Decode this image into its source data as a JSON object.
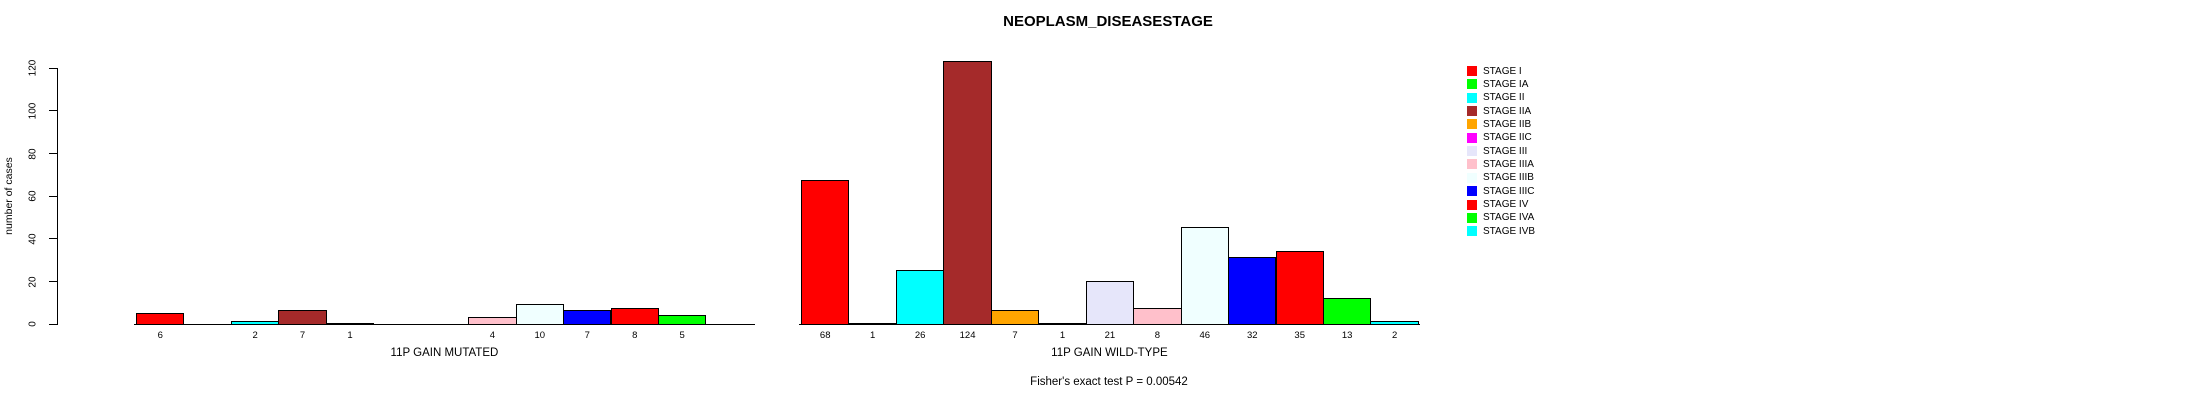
{
  "figure": {
    "title": "NEOPLASM_DISEASESTAGE",
    "footer": "Fisher's exact test P = 0.00542"
  },
  "chart_data": {
    "type": "bar",
    "title": "NEOPLASM_DISEASESTAGE",
    "xlabel": "",
    "ylabel": "number of cases",
    "ylim": [
      0,
      124
    ],
    "yticks": [
      0,
      20,
      40,
      60,
      80,
      100,
      120
    ],
    "grid": false,
    "legend_position": "right",
    "categories": [
      "STAGE I",
      "STAGE IA",
      "STAGE II",
      "STAGE IIA",
      "STAGE IIB",
      "STAGE IIC",
      "STAGE III",
      "STAGE IIIA",
      "STAGE IIIB",
      "STAGE IIIC",
      "STAGE IV",
      "STAGE IVA",
      "STAGE IVB"
    ],
    "category_colors": [
      "#FF0000",
      "#00FF00",
      "#00FFFF",
      "#A52A2A",
      "#FFA500",
      "#FF00FF",
      "#E6E6FA",
      "#FFC0CB",
      "#F0FFFF",
      "#0000FF",
      "#FF0000",
      "#00FF00",
      "#00FFFF"
    ],
    "bar_border_color": "#000000",
    "series": [
      {
        "name": "11P GAIN MUTATED",
        "values": [
          6,
          0,
          2,
          7,
          1,
          0,
          0,
          4,
          10,
          7,
          8,
          5,
          0
        ]
      },
      {
        "name": "11P GAIN WILD-TYPE",
        "values": [
          68,
          1,
          26,
          124,
          7,
          1,
          21,
          8,
          46,
          32,
          35,
          13,
          2
        ]
      }
    ],
    "legend": [
      {
        "label": "STAGE I",
        "color": "#FF0000"
      },
      {
        "label": "STAGE IA",
        "color": "#00FF00"
      },
      {
        "label": "STAGE II",
        "color": "#00FFFF"
      },
      {
        "label": "STAGE IIA",
        "color": "#A52A2A"
      },
      {
        "label": "STAGE IIB",
        "color": "#FFA500"
      },
      {
        "label": "STAGE IIC",
        "color": "#FF00FF"
      },
      {
        "label": "STAGE III",
        "color": "#E6E6FA"
      },
      {
        "label": "STAGE IIIA",
        "color": "#FFC0CB"
      },
      {
        "label": "STAGE IIIB",
        "color": "#F0FFFF"
      },
      {
        "label": "STAGE IIIC",
        "color": "#0000FF"
      },
      {
        "label": "STAGE IV",
        "color": "#FF0000"
      },
      {
        "label": "STAGE IVA",
        "color": "#00FF00"
      },
      {
        "label": "STAGE IVB",
        "color": "#00FFFF"
      }
    ],
    "annotation": "Fisher's exact test P = 0.00542"
  }
}
